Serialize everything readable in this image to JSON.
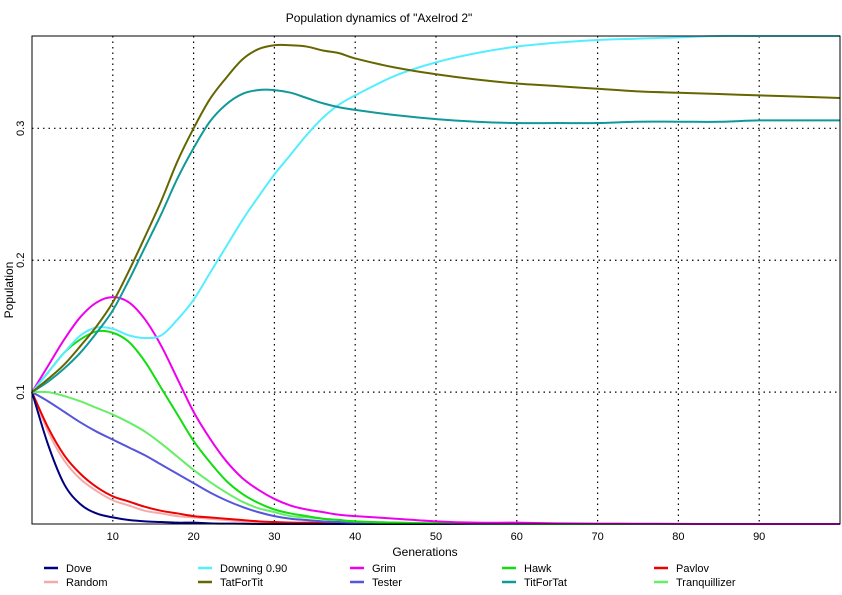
{
  "chart_data": {
    "type": "line",
    "title": "Population dynamics of \"Axelrod 2\"",
    "xlabel": "Generations",
    "ylabel": "Population",
    "xlim": [
      0,
      100
    ],
    "ylim": [
      0,
      0.37
    ],
    "x_ticks": [
      10,
      20,
      30,
      40,
      50,
      60,
      70,
      80,
      90
    ],
    "y_ticks": [
      0.1,
      0.2,
      0.3
    ],
    "grid": "dotted",
    "legend_position": "bottom",
    "x": [
      0,
      2,
      4,
      6,
      8,
      10,
      12,
      14,
      16,
      18,
      20,
      22,
      24,
      26,
      28,
      30,
      32,
      34,
      36,
      38,
      40,
      45,
      50,
      55,
      60,
      65,
      70,
      75,
      80,
      85,
      90,
      95,
      100
    ],
    "series": [
      {
        "name": "Dove",
        "color": "#000080",
        "values": [
          0.1,
          0.06,
          0.03,
          0.015,
          0.008,
          0.005,
          0.003,
          0.002,
          0.0015,
          0.001,
          0.001,
          0.0005,
          0.0003,
          0.0002,
          0,
          0,
          0,
          0,
          0,
          0,
          0,
          0,
          0,
          0,
          0,
          0,
          0,
          0,
          0,
          0,
          0,
          0,
          0
        ]
      },
      {
        "name": "Downing 0.90",
        "color": "#55eeff",
        "values": [
          0.1,
          0.115,
          0.13,
          0.143,
          0.149,
          0.148,
          0.143,
          0.141,
          0.143,
          0.155,
          0.17,
          0.19,
          0.21,
          0.23,
          0.248,
          0.265,
          0.28,
          0.295,
          0.308,
          0.318,
          0.325,
          0.34,
          0.35,
          0.357,
          0.362,
          0.365,
          0.367,
          0.368,
          0.369,
          0.37,
          0.37,
          0.37,
          0.37
        ]
      },
      {
        "name": "Grim",
        "color": "#ee00ee",
        "values": [
          0.1,
          0.12,
          0.14,
          0.157,
          0.168,
          0.172,
          0.168,
          0.155,
          0.135,
          0.11,
          0.085,
          0.065,
          0.048,
          0.035,
          0.026,
          0.019,
          0.014,
          0.011,
          0.009,
          0.007,
          0.006,
          0.004,
          0.002,
          0.001,
          0.001,
          0.0005,
          0.0003,
          0.0002,
          0.0001,
          0,
          0,
          0,
          0
        ]
      },
      {
        "name": "Hawk",
        "color": "#11dd11",
        "values": [
          0.1,
          0.115,
          0.13,
          0.14,
          0.146,
          0.145,
          0.138,
          0.123,
          0.103,
          0.083,
          0.063,
          0.047,
          0.033,
          0.023,
          0.016,
          0.011,
          0.008,
          0.006,
          0.004,
          0.003,
          0.002,
          0.001,
          0.0005,
          0.0002,
          0.0001,
          0,
          0,
          0,
          0,
          0,
          0,
          0,
          0
        ]
      },
      {
        "name": "Pavlov",
        "color": "#ee0000",
        "values": [
          0.1,
          0.073,
          0.052,
          0.038,
          0.028,
          0.021,
          0.017,
          0.013,
          0.01,
          0.008,
          0.006,
          0.005,
          0.004,
          0.003,
          0.002,
          0.0015,
          0.001,
          0.001,
          0.0008,
          0.0006,
          0.0005,
          0.0003,
          0.0002,
          0.0001,
          0,
          0,
          0,
          0,
          0,
          0,
          0,
          0,
          0
        ]
      },
      {
        "name": "Random",
        "color": "#f5aaaa",
        "values": [
          0.1,
          0.07,
          0.048,
          0.034,
          0.025,
          0.018,
          0.014,
          0.01,
          0.008,
          0.006,
          0.005,
          0.004,
          0.003,
          0.002,
          0.0015,
          0.001,
          0.001,
          0.0007,
          0.0005,
          0.0003,
          0.0002,
          0.0001,
          0,
          0,
          0,
          0,
          0,
          0,
          0,
          0,
          0,
          0,
          0
        ]
      },
      {
        "name": "TatForTit",
        "color": "#666600",
        "values": [
          0.1,
          0.11,
          0.121,
          0.135,
          0.15,
          0.168,
          0.192,
          0.218,
          0.245,
          0.275,
          0.3,
          0.322,
          0.338,
          0.352,
          0.36,
          0.363,
          0.363,
          0.362,
          0.359,
          0.357,
          0.353,
          0.346,
          0.341,
          0.337,
          0.334,
          0.332,
          0.33,
          0.328,
          0.327,
          0.326,
          0.325,
          0.324,
          0.323
        ]
      },
      {
        "name": "Tester",
        "color": "#5555dd",
        "values": [
          0.1,
          0.093,
          0.085,
          0.077,
          0.07,
          0.064,
          0.058,
          0.052,
          0.045,
          0.038,
          0.031,
          0.024,
          0.018,
          0.013,
          0.009,
          0.006,
          0.004,
          0.003,
          0.002,
          0.0015,
          0.001,
          0.0006,
          0.0003,
          0.0002,
          0.0001,
          0,
          0,
          0,
          0,
          0,
          0,
          0,
          0
        ]
      },
      {
        "name": "TitForTat",
        "color": "#119999",
        "values": [
          0.1,
          0.108,
          0.118,
          0.13,
          0.145,
          0.162,
          0.185,
          0.21,
          0.235,
          0.262,
          0.285,
          0.305,
          0.318,
          0.326,
          0.329,
          0.329,
          0.327,
          0.323,
          0.319,
          0.316,
          0.314,
          0.31,
          0.307,
          0.305,
          0.304,
          0.304,
          0.304,
          0.305,
          0.305,
          0.305,
          0.306,
          0.306,
          0.306
        ]
      },
      {
        "name": "Tranquillizer",
        "color": "#66ee66",
        "values": [
          0.1,
          0.1,
          0.097,
          0.093,
          0.088,
          0.083,
          0.077,
          0.07,
          0.061,
          0.051,
          0.041,
          0.032,
          0.024,
          0.017,
          0.012,
          0.009,
          0.006,
          0.005,
          0.004,
          0.003,
          0.002,
          0.001,
          0.0005,
          0.0003,
          0.0002,
          0.0001,
          0,
          0,
          0,
          0,
          0,
          0,
          0
        ]
      }
    ]
  }
}
